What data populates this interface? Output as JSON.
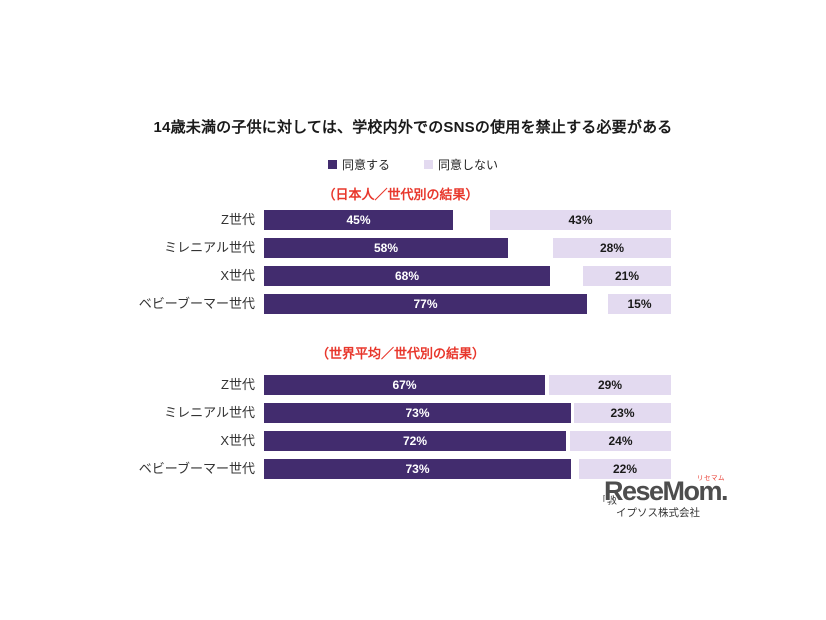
{
  "title": "14歳未満の子供に対しては、学校内外でのSNSの使用を禁止する必要がある",
  "legend": {
    "items": [
      {
        "label": "同意する",
        "color_key": "agree"
      },
      {
        "label": "同意しない",
        "color_key": "disagree"
      }
    ]
  },
  "colors": {
    "agree": "#422c6e",
    "disagree": "#e3daf0",
    "heading_red": "#e8372c",
    "agree_value_text": "#ffffff",
    "disagree_value_text": "#1a1a1a",
    "logo_gray": "#4d4d4d",
    "logo_ruby_red": "#e8372c"
  },
  "chart_data": [
    {
      "type": "bar",
      "orientation": "horizontal",
      "title": "（日本人／世代別の結果）",
      "categories": [
        "Z世代",
        "ミレニアル世代",
        "X世代",
        "ベビーブーマー世代"
      ],
      "series": [
        {
          "name": "同意する",
          "values": [
            45,
            58,
            68,
            77
          ]
        },
        {
          "name": "同意しない",
          "values": [
            43,
            28,
            21,
            15
          ]
        }
      ],
      "x_range": [
        0,
        100
      ],
      "value_label_format": "percent",
      "layout_hint": "agree bars left-aligned, disagree bars right-aligned, legend top"
    },
    {
      "type": "bar",
      "orientation": "horizontal",
      "title": "（世界平均／世代別の結果）",
      "categories": [
        "Z世代",
        "ミレニアル世代",
        "X世代",
        "ベビーブーマー世代"
      ],
      "series": [
        {
          "name": "同意する",
          "values": [
            67,
            73,
            72,
            73
          ]
        },
        {
          "name": "同意しない",
          "values": [
            29,
            23,
            24,
            22
          ]
        }
      ],
      "x_range": [
        0,
        100
      ],
      "value_label_format": "percent",
      "layout_hint": "agree bars left-aligned, disagree bars right-aligned"
    }
  ],
  "footer": {
    "source_text_visible": "「教",
    "company": "イプソス株式会社",
    "logo": {
      "text": "ReseMom.",
      "ruby": "リセマム"
    }
  }
}
